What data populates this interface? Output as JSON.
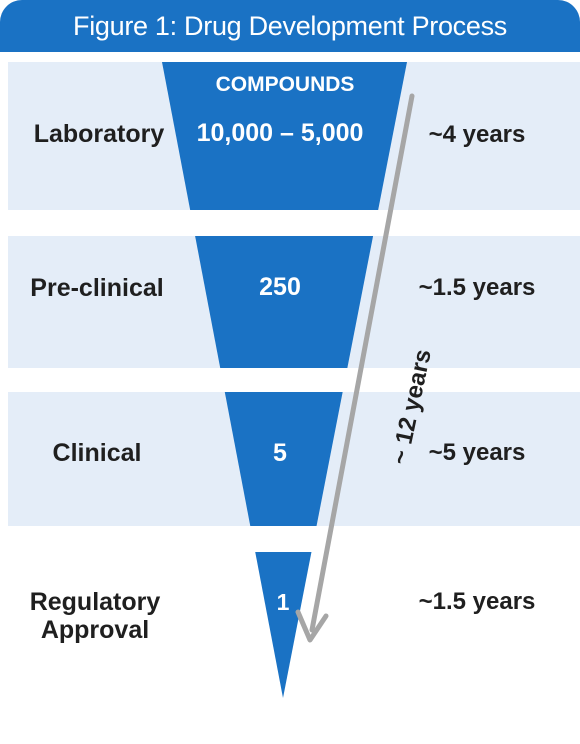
{
  "header": {
    "title": "Figure 1: Drug Development Process"
  },
  "funnel": {
    "column_label": "COMPOUNDS",
    "color": "#1a72c4"
  },
  "stages": [
    {
      "name": "Laboratory",
      "compounds": "10,000 – 5,000",
      "duration": "~4 years"
    },
    {
      "name": "Pre-clinical",
      "compounds": "250",
      "duration": "~1.5 years"
    },
    {
      "name": "Clinical",
      "compounds": "5",
      "duration": "~5 years"
    },
    {
      "name_line1": "Regulatory",
      "name_line2": "Approval",
      "compounds": "1",
      "duration": "~1.5 years"
    }
  ],
  "total": {
    "label": "~ 12 years",
    "arrow_color": "#a6a6a6"
  },
  "colors": {
    "band": "#e4edf8",
    "title_bar": "#1a72c4"
  }
}
